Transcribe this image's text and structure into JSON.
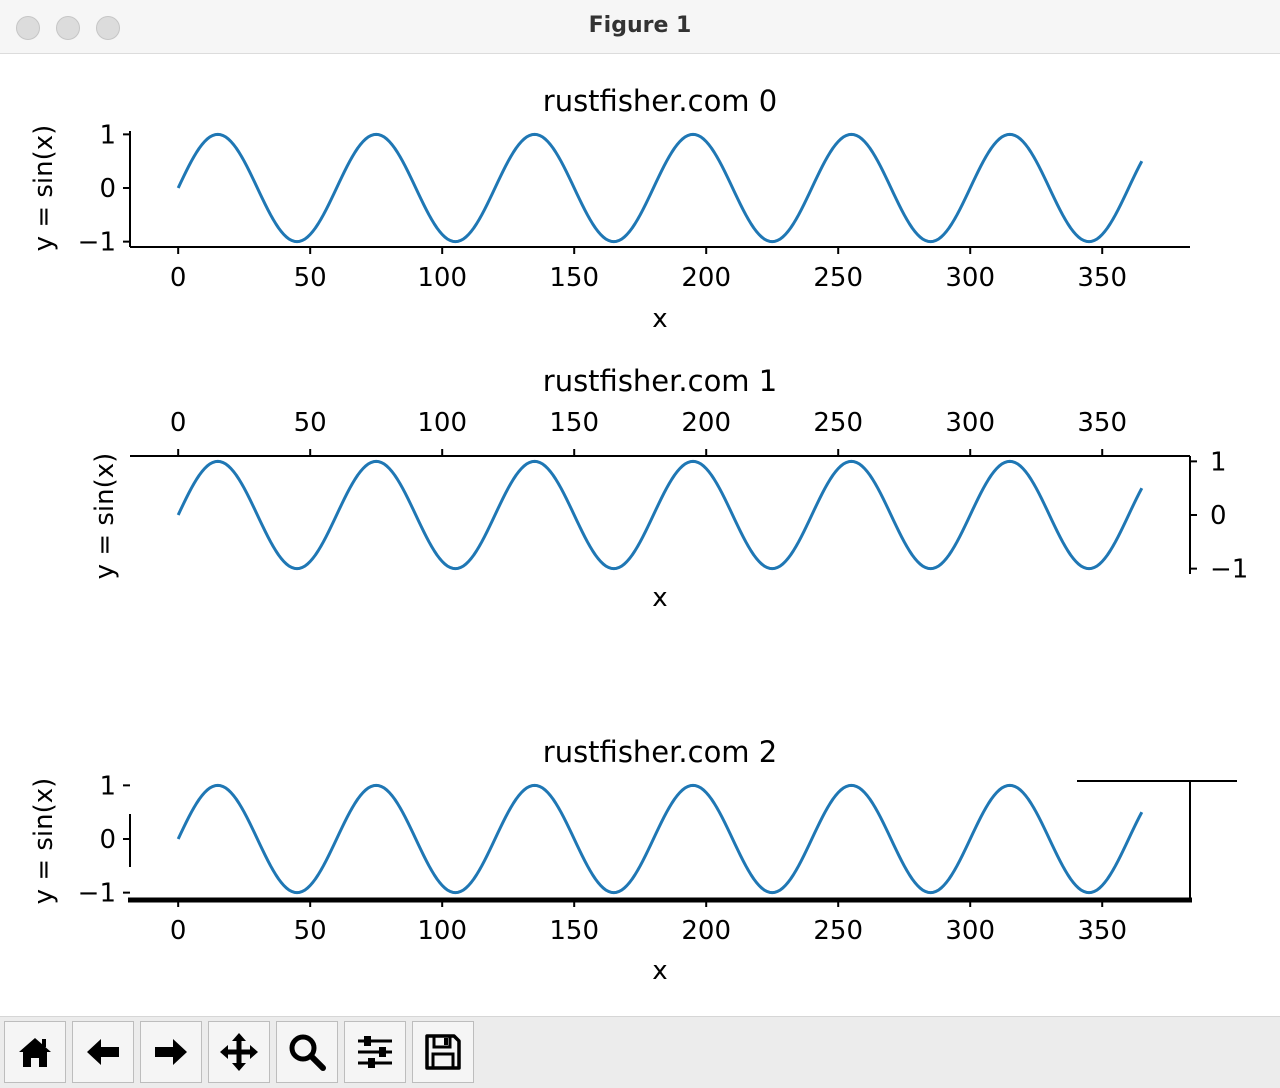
{
  "window": {
    "title": "Figure 1"
  },
  "colors": {
    "line": "#1f77b4",
    "axis": "#000000"
  },
  "toolbar": {
    "buttons": [
      {
        "icon": "home-icon"
      },
      {
        "icon": "back-arrow-icon"
      },
      {
        "icon": "forward-arrow-icon"
      },
      {
        "icon": "pan-move-icon"
      },
      {
        "icon": "zoom-magnifier-icon"
      },
      {
        "icon": "subplots-sliders-icon"
      },
      {
        "icon": "save-floppy-icon"
      }
    ]
  },
  "chart_data": [
    {
      "type": "line",
      "title": "rustfisher.com 0",
      "xlabel": "x",
      "ylabel": "y = sin(x)",
      "function": "sin",
      "x_step_degrees": 1,
      "series": [
        {
          "x_range": [
            0,
            365
          ],
          "expression": "sin(x * pi / 30)"
        }
      ],
      "xlim": [
        -18.25,
        383.25
      ],
      "ylim": [
        -1.1,
        1.1
      ],
      "xticks": [
        "0",
        "50",
        "100",
        "150",
        "200",
        "250",
        "300",
        "350"
      ],
      "yticks": [
        "1",
        "0",
        "−1"
      ],
      "xaxis_position": "bottom",
      "yaxis_position": "left",
      "visible_spines": [
        "left",
        "bottom"
      ]
    },
    {
      "type": "line",
      "title": "rustfisher.com 1",
      "xlabel": "x",
      "ylabel": "y = sin(x)",
      "function": "sin",
      "series": [
        {
          "x_range": [
            0,
            365
          ],
          "expression": "sin(x * pi / 30)"
        }
      ],
      "xlim": [
        -18.25,
        383.25
      ],
      "ylim": [
        -1.1,
        1.1
      ],
      "xticks": [
        "0",
        "50",
        "100",
        "150",
        "200",
        "250",
        "300",
        "350"
      ],
      "yticks": [
        "1",
        "0",
        "−1"
      ],
      "xaxis_position": "top",
      "yaxis_position": "right",
      "visible_spines": [
        "top",
        "right"
      ]
    },
    {
      "type": "line",
      "title": "rustfisher.com 2",
      "xlabel": "x",
      "ylabel": "y = sin(x)",
      "function": "sin",
      "series": [
        {
          "x_range": [
            0,
            365
          ],
          "expression": "sin(x * pi / 30)"
        }
      ],
      "xlim": [
        -18.25,
        383.25
      ],
      "ylim": [
        -1.1,
        1.1
      ],
      "xticks": [
        "0",
        "50",
        "100",
        "150",
        "200",
        "250",
        "300",
        "350"
      ],
      "yticks": [
        "1",
        "0",
        "−1"
      ],
      "xaxis_position": "bottom",
      "yaxis_position": "left",
      "visible_spines": [
        "left",
        "bottom",
        "right",
        "top"
      ]
    }
  ]
}
